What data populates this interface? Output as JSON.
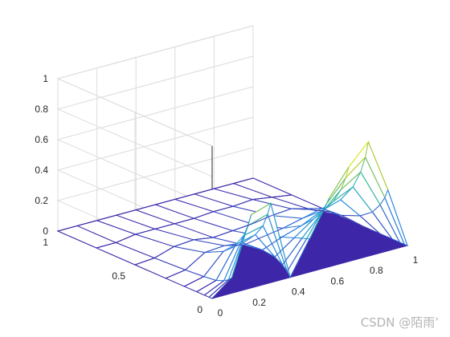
{
  "chart_data": {
    "type": "mesh3d",
    "title": "",
    "xlabel": "",
    "ylabel": "",
    "zlabel": "",
    "grid": true,
    "colormap": "parula",
    "colors": {
      "low": "#3e26a8",
      "mid": "#2ab7b0",
      "high": "#f8fa0d",
      "axis": "#262626",
      "grid": "#dcdcdc"
    },
    "xlim": [
      0,
      1
    ],
    "ylim": [
      0,
      1
    ],
    "zlim": [
      0,
      1
    ],
    "x_ticks": [
      "0",
      "0.2",
      "0.4",
      "0.6",
      "0.8",
      "1"
    ],
    "y_ticks": [
      "0",
      "0.5",
      "1"
    ],
    "z_ticks": [
      "0",
      "0.2",
      "0.4",
      "0.6",
      "0.8",
      "1"
    ],
    "x_tick_values": [
      0,
      0.2,
      0.4,
      0.6,
      0.8,
      1
    ],
    "y_tick_values": [
      0,
      0.5,
      1
    ],
    "z_tick_values": [
      0,
      0.2,
      0.4,
      0.6,
      0.8,
      1
    ],
    "grid_x": [
      0,
      0.1,
      0.2,
      0.3,
      0.4,
      0.5,
      0.6,
      0.7,
      0.8,
      0.9,
      1
    ],
    "mesh_rows": [
      {
        "y": 0.0,
        "z": [
          0,
          0.1,
          0.48,
          0.52,
          0.0,
          0.22,
          0.45,
          0.62,
          0.75,
          0.4,
          0
        ]
      },
      {
        "y": 0.02,
        "z": [
          0,
          0.08,
          0.4,
          0.44,
          0.03,
          0.21,
          0.4,
          0.54,
          0.64,
          0.34,
          0
        ]
      },
      {
        "y": 0.05,
        "z": [
          0,
          0.06,
          0.32,
          0.35,
          0.06,
          0.2,
          0.33,
          0.45,
          0.53,
          0.28,
          0
        ]
      },
      {
        "y": 0.1,
        "z": [
          0,
          0.04,
          0.24,
          0.27,
          0.09,
          0.18,
          0.27,
          0.35,
          0.41,
          0.21,
          0
        ]
      },
      {
        "y": 0.18,
        "z": [
          0,
          0.03,
          0.16,
          0.18,
          0.1,
          0.15,
          0.19,
          0.25,
          0.29,
          0.15,
          0
        ]
      },
      {
        "y": 0.3,
        "z": [
          0,
          0.02,
          0.1,
          0.11,
          0.08,
          0.1,
          0.12,
          0.15,
          0.18,
          0.1,
          0
        ]
      },
      {
        "y": 0.5,
        "z": [
          0,
          0.01,
          0.05,
          0.06,
          0.04,
          0.05,
          0.06,
          0.08,
          0.09,
          0.05,
          0
        ]
      },
      {
        "y": 0.75,
        "z": [
          0,
          0.0,
          0.02,
          0.02,
          0.02,
          0.02,
          0.03,
          0.03,
          0.04,
          0.02,
          0
        ]
      },
      {
        "y": 1.0,
        "z": [
          0,
          0,
          0,
          0,
          0,
          0,
          0,
          0,
          0,
          0,
          0
        ]
      }
    ]
  },
  "watermark": "CSDN @陌雨’"
}
